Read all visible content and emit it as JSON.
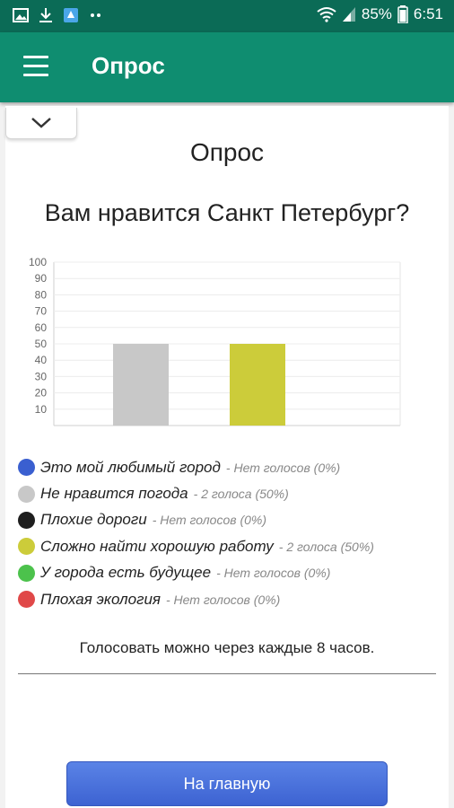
{
  "status_bar": {
    "battery": "85%",
    "time": "6:51",
    "icons": [
      "image-icon",
      "download-icon",
      "app-notification-icon",
      "more-dots-icon",
      "wifi-icon",
      "signal-icon",
      "battery-icon"
    ]
  },
  "app_bar": {
    "title": "Опрос",
    "menu_icon": "hamburger-menu-icon"
  },
  "poll": {
    "collapse_icon": "chevron-down-icon",
    "heading": "Опрос",
    "question": "Вам нравится Санкт Петербург?",
    "options": [
      {
        "label": "Это мой любимый город",
        "votes": "- Нет голосов (0%)",
        "color": "#3a5fd0"
      },
      {
        "label": "Не нравится погода",
        "votes": "- 2 голоса (50%)",
        "color": "#c8c8c8"
      },
      {
        "label": "Плохие дороги",
        "votes": "- Нет голосов (0%)",
        "color": "#1e1e1e"
      },
      {
        "label": "Сложно найти хорошую работу",
        "votes": "- 2 голоса (50%)",
        "color": "#cccc3a"
      },
      {
        "label": "У города есть будущее",
        "votes": "- Нет голосов (0%)",
        "color": "#4cc24c"
      },
      {
        "label": "Плохая экология",
        "votes": "- Нет голосов (0%)",
        "color": "#e04848"
      }
    ],
    "note": "Голосовать можно через каждые 8 часов.",
    "home_button": "На главную"
  },
  "chart_data": {
    "type": "bar",
    "categories": [
      "Не нравится погода",
      "Сложно найти хорошую работу"
    ],
    "values": [
      50,
      50
    ],
    "colors": [
      "#c8c8c8",
      "#cccc3a"
    ],
    "yticks": [
      "100",
      "90",
      "80",
      "70",
      "60",
      "50",
      "40",
      "30",
      "20",
      "10"
    ],
    "ylim": [
      0,
      100
    ],
    "grid": true,
    "legend": "none"
  }
}
